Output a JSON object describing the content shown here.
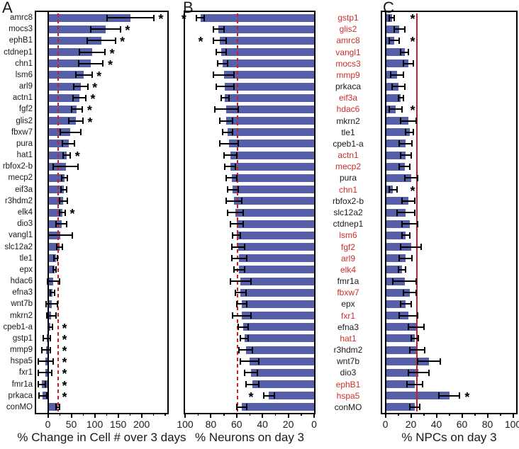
{
  "figure_colors": {
    "bar": "#5560a9",
    "reference_line": "#cc1e26",
    "red_label": "#c9302c",
    "error_bar": "#000000",
    "axis": "#000000"
  },
  "red_gene_labels": [
    "gstp1",
    "glis2",
    "amrc8",
    "vangl1",
    "mocs3",
    "mmp9",
    "eif3a",
    "hdac6",
    "actn1",
    "mecp2",
    "chn1",
    "lsm6",
    "fgf2",
    "arl9",
    "elk4",
    "fbxw7",
    "fxr1",
    "hat1",
    "ephB1",
    "hspa5"
  ],
  "chart_data": [
    {
      "type": "bar",
      "orientation": "horizontal",
      "panel_letter": "A",
      "xlabel": "% Change in Cell # over 3 days",
      "xlim": [
        -25,
        255
      ],
      "xticks": [
        0,
        50,
        100,
        150,
        200
      ],
      "minor_xticks": [
        25,
        75,
        125,
        175,
        225,
        250
      ],
      "axis_reversed": false,
      "zero_line": true,
      "grid": false,
      "reference_line": {
        "value": 22,
        "style": "dashed"
      },
      "labels_side": "left",
      "categories": [
        "amrc8",
        "mocs3",
        "ephB1",
        "ctdnep1",
        "chn1",
        "lsm6",
        "arl9",
        "actn1",
        "fgf2",
        "glis2",
        "fbxw7",
        "pura",
        "hat1",
        "rbfox2-b",
        "mecp2",
        "eif3a",
        "r3hdm2",
        "elk4",
        "dio3",
        "vangl1",
        "slc12a2",
        "tle1",
        "epx",
        "hdac6",
        "efna3",
        "wnt7b",
        "mkrn2",
        "cpeb1-a",
        "gstp1",
        "mmp9",
        "hspa5",
        "fxr1",
        "fmr1a",
        "prkaca",
        "conMO"
      ],
      "values": [
        176,
        123,
        114,
        95,
        92,
        77,
        70,
        67,
        62,
        60,
        48,
        44,
        40,
        38,
        36,
        34,
        33,
        31,
        29,
        26,
        25,
        17,
        14,
        12,
        10,
        8,
        7,
        5,
        -2,
        -4,
        -5,
        -6,
        -13,
        -11,
        21
      ],
      "errors": [
        50,
        32,
        30,
        27,
        26,
        17,
        15,
        14,
        12,
        15,
        22,
        13,
        8,
        27,
        6,
        6,
        8,
        6,
        11,
        26,
        6,
        4,
        3,
        13,
        5,
        12,
        10,
        5,
        8,
        9,
        16,
        14,
        7,
        8,
        4
      ],
      "significant": [
        true,
        true,
        true,
        true,
        true,
        true,
        true,
        true,
        true,
        true,
        false,
        false,
        true,
        false,
        false,
        false,
        false,
        true,
        false,
        false,
        false,
        false,
        false,
        false,
        false,
        false,
        false,
        true,
        true,
        true,
        true,
        true,
        true,
        true,
        false
      ]
    },
    {
      "type": "bar",
      "orientation": "horizontal",
      "panel_letter": "B",
      "xlabel": "% Neurons on day 3",
      "xlim": [
        0,
        100
      ],
      "xticks": [
        100,
        80,
        60,
        40,
        20,
        0
      ],
      "minor_xticks": [
        90,
        70,
        50,
        30,
        10
      ],
      "axis_reversed": true,
      "zero_line": false,
      "grid": false,
      "reference_line": {
        "value": 59.5,
        "style": "dashed"
      },
      "labels_side": "right-column",
      "categories": [
        "gstp1",
        "glis2",
        "amrc8",
        "vangl1",
        "mocs3",
        "mmp9",
        "prkaca",
        "eif3a",
        "hdac6",
        "mkrn2",
        "tle1",
        "cpeb1-a",
        "actn1",
        "mecp2",
        "pura",
        "chn1",
        "rbfox2-b",
        "slc12a2",
        "ctdnep1",
        "lsm6",
        "fgf2",
        "arl9",
        "elk4",
        "fmr1a",
        "fbxw7",
        "epx",
        "fxr1",
        "efna3",
        "hat1",
        "r3hdm2",
        "wnt7b",
        "dio3",
        "ephB1",
        "hspa5",
        "conMO"
      ],
      "values": [
        88,
        74,
        73,
        72,
        71,
        70,
        69,
        69,
        68,
        68,
        67,
        66,
        65,
        65,
        64,
        63,
        62,
        61,
        60,
        60,
        59,
        58,
        58,
        57,
        57,
        56,
        56,
        55,
        54,
        53,
        50,
        49,
        48,
        35,
        56
      ],
      "errors": [
        3,
        4,
        5,
        4,
        4,
        8,
        7,
        3,
        9,
        5,
        4,
        7,
        5,
        4,
        4,
        4,
        6,
        6,
        5,
        3,
        5,
        6,
        4,
        8,
        4,
        4,
        7,
        4,
        3,
        5,
        7,
        5,
        5,
        4,
        4
      ],
      "significant": [
        true,
        false,
        true,
        false,
        false,
        false,
        false,
        false,
        false,
        false,
        false,
        false,
        false,
        false,
        false,
        false,
        false,
        false,
        false,
        false,
        false,
        false,
        false,
        false,
        false,
        false,
        false,
        false,
        false,
        false,
        false,
        false,
        false,
        true,
        false
      ]
    },
    {
      "type": "bar",
      "orientation": "horizontal",
      "panel_letter": "C",
      "xlabel": "% NPCs on day 3",
      "xlim": [
        -2.5,
        102.5
      ],
      "xticks": [
        0,
        20,
        40,
        60,
        80,
        100
      ],
      "minor_xticks": [
        10,
        30,
        50,
        70,
        90
      ],
      "axis_reversed": false,
      "zero_line": true,
      "grid": false,
      "reference_line": {
        "value": 24.5,
        "style": "solid"
      },
      "labels_side": "none",
      "categories": [
        "gstp1",
        "glis2",
        "amrc8",
        "vangl1",
        "mocs3",
        "mmp9",
        "prkaca",
        "eif3a",
        "hdac6",
        "mkrn2",
        "tle1",
        "cpeb1-a",
        "actn1",
        "mecp2",
        "pura",
        "chn1",
        "rbfox2-b",
        "slc12a2",
        "ctdnep1",
        "lsm6",
        "fgf2",
        "arl9",
        "elk4",
        "fmr1a",
        "fbxw7",
        "epx",
        "fxr1",
        "efna3",
        "hat1",
        "r3hdm2",
        "wnt7b",
        "dio3",
        "ephB1",
        "hspa5",
        "conMO"
      ],
      "values": [
        5,
        11,
        7,
        15,
        18,
        9,
        10,
        12,
        8,
        18,
        19,
        16,
        16,
        15,
        20,
        6,
        18,
        16,
        19,
        16,
        20,
        16,
        13,
        15,
        19,
        16,
        18,
        24,
        23,
        25,
        34,
        26,
        23,
        50,
        23
      ],
      "errors": [
        2,
        4,
        4,
        3,
        4,
        5,
        5,
        2,
        5,
        6,
        3,
        5,
        4,
        4,
        5,
        3,
        5,
        7,
        6,
        3,
        8,
        5,
        3,
        9,
        5,
        4,
        7,
        6,
        3,
        6,
        9,
        8,
        6,
        8,
        4
      ],
      "significant": [
        true,
        false,
        true,
        false,
        false,
        false,
        false,
        false,
        true,
        false,
        false,
        false,
        false,
        false,
        false,
        true,
        false,
        false,
        false,
        false,
        false,
        false,
        false,
        false,
        false,
        false,
        false,
        false,
        false,
        false,
        false,
        false,
        false,
        true,
        false
      ]
    }
  ]
}
